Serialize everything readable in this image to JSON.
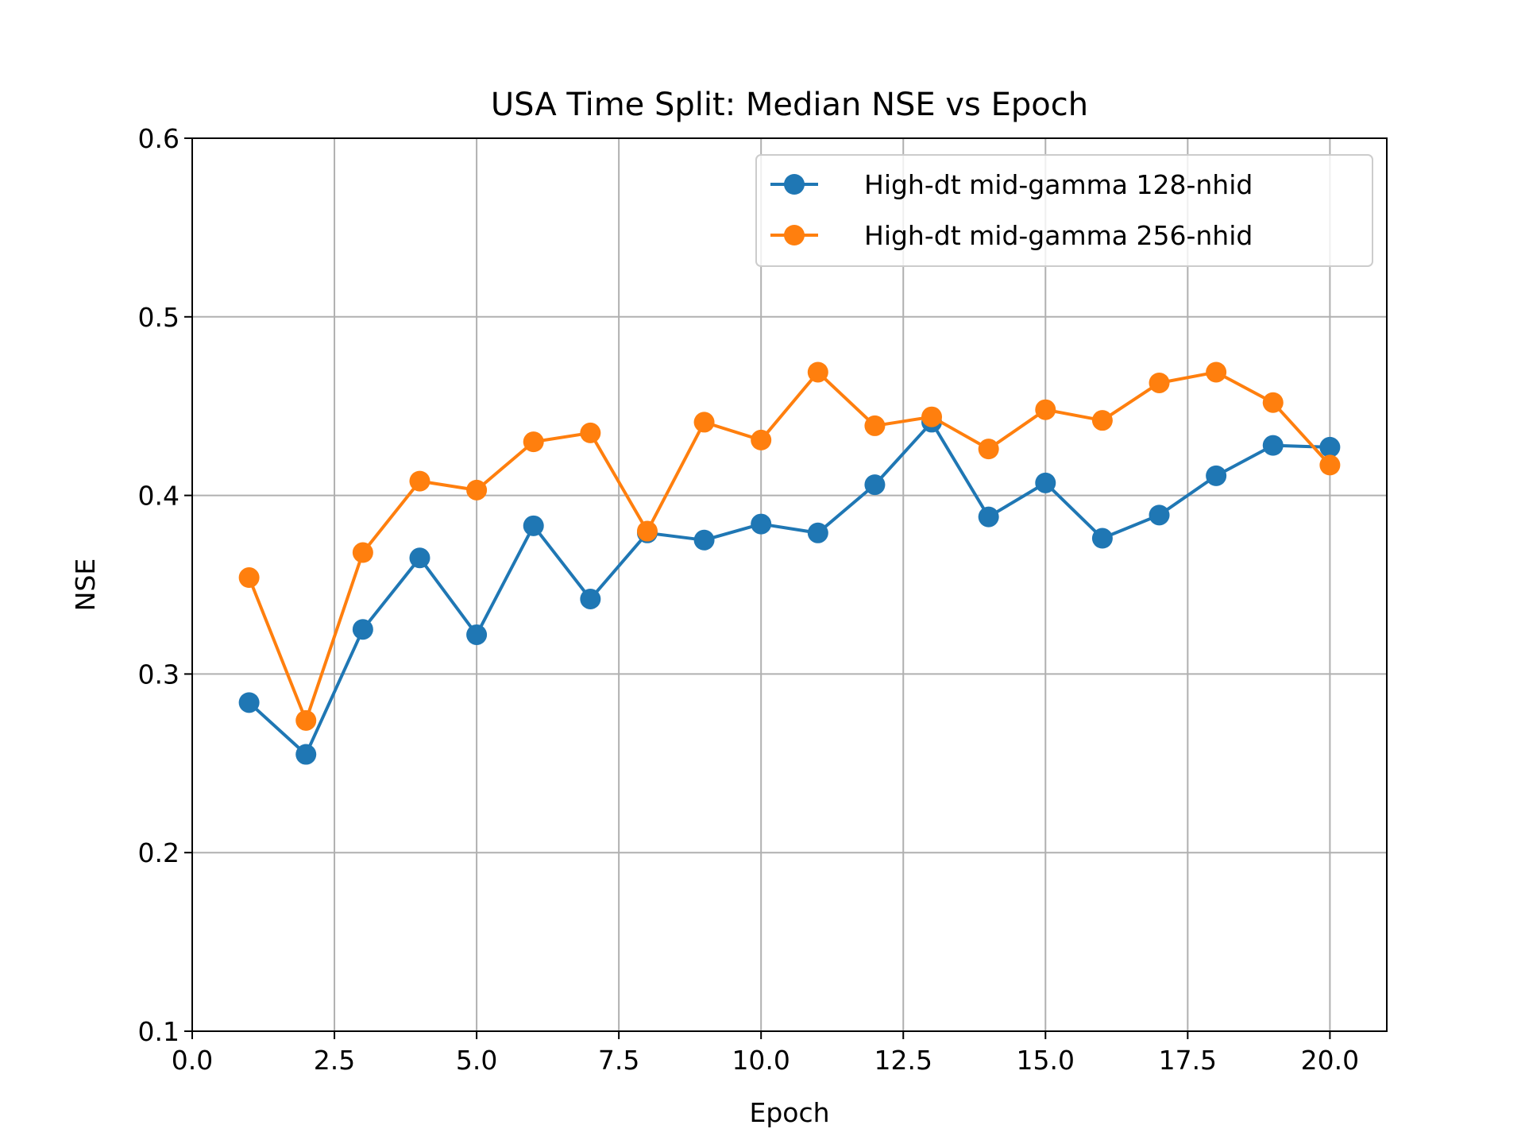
{
  "chart_data": {
    "type": "line",
    "title": "USA Time Split: Median NSE vs Epoch",
    "xlabel": "Epoch",
    "ylabel": "NSE",
    "xlim": [
      0.0,
      21.0
    ],
    "ylim": [
      0.1,
      0.6
    ],
    "xticks": [
      0.0,
      2.5,
      5.0,
      7.5,
      10.0,
      12.5,
      15.0,
      17.5,
      20.0
    ],
    "xtick_labels": [
      "0.0",
      "2.5",
      "5.0",
      "7.5",
      "10.0",
      "12.5",
      "15.0",
      "17.5",
      "20.0"
    ],
    "yticks": [
      0.1,
      0.2,
      0.3,
      0.4,
      0.5,
      0.6
    ],
    "ytick_labels": [
      "0.1",
      "0.2",
      "0.3",
      "0.4",
      "0.5",
      "0.6"
    ],
    "grid": true,
    "legend_position": "upper-right",
    "x": [
      1,
      2,
      3,
      4,
      5,
      6,
      7,
      8,
      9,
      10,
      11,
      12,
      13,
      14,
      15,
      16,
      17,
      18,
      19,
      20
    ],
    "series": [
      {
        "name": "High-dt mid-gamma 128-nhid",
        "color": "#1f77b4",
        "values": [
          0.284,
          0.255,
          0.325,
          0.365,
          0.322,
          0.383,
          0.342,
          0.379,
          0.375,
          0.384,
          0.379,
          0.406,
          0.441,
          0.388,
          0.407,
          0.376,
          0.389,
          0.411,
          0.428,
          0.427
        ]
      },
      {
        "name": "High-dt mid-gamma 256-nhid",
        "color": "#ff7f0e",
        "values": [
          0.354,
          0.274,
          0.368,
          0.408,
          0.403,
          0.43,
          0.435,
          0.38,
          0.441,
          0.431,
          0.469,
          0.439,
          0.444,
          0.426,
          0.448,
          0.442,
          0.463,
          0.469,
          0.452,
          0.417
        ]
      }
    ]
  }
}
